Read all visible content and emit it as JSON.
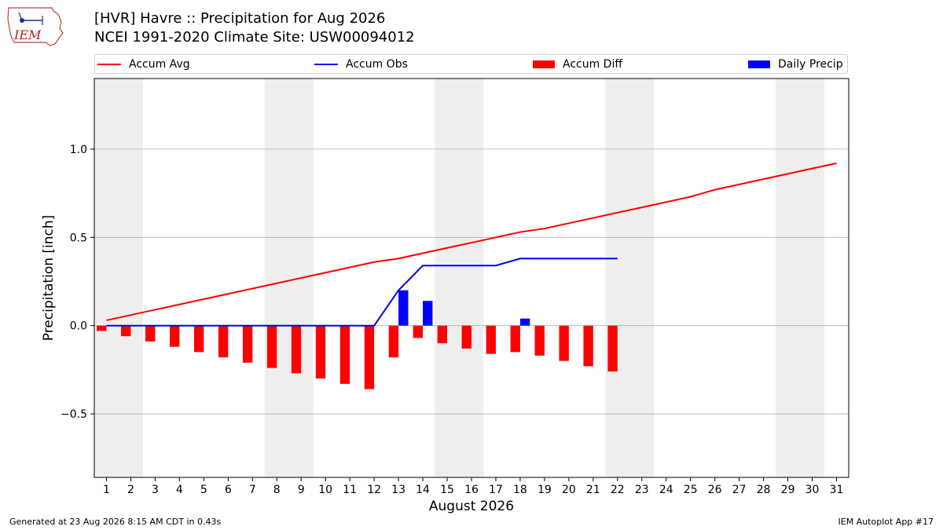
{
  "header": {
    "title_line1": "[HVR] Havre :: Precipitation for Aug 2026",
    "title_line2": "NCEI 1991-2020 Climate Site: USW00094012"
  },
  "logo": {
    "text": "IEM"
  },
  "legend": {
    "accum_avg": "Accum Avg",
    "accum_obs": "Accum Obs",
    "accum_diff": "Accum Diff",
    "daily_precip": "Daily Precip"
  },
  "footer": {
    "left": "Generated at 23 Aug 2026 8:15 AM CDT in 0.43s",
    "right": "IEM Autoplot App #17"
  },
  "colors": {
    "accum_avg": "#ff0000",
    "accum_obs": "#0000ff",
    "accum_diff": "#ff0000",
    "daily_precip": "#0000ff",
    "weekend_shade": "#eeeeee",
    "grid": "#b0b0b0"
  },
  "chart_data": {
    "type": "bar",
    "xlabel": "August 2026",
    "ylabel": "Precipitation [inch]",
    "xlim": [
      0.5,
      31.5
    ],
    "ylim": [
      -0.86,
      1.4
    ],
    "yticks": [
      -0.5,
      0.0,
      0.5,
      1.0
    ],
    "ytick_labels": [
      "−0.5",
      "0.0",
      "0.5",
      "1.0"
    ],
    "days": [
      1,
      2,
      3,
      4,
      5,
      6,
      7,
      8,
      9,
      10,
      11,
      12,
      13,
      14,
      15,
      16,
      17,
      18,
      19,
      20,
      21,
      22,
      23,
      24,
      25,
      26,
      27,
      28,
      29,
      30,
      31
    ],
    "weekend_days": [
      1,
      2,
      8,
      9,
      15,
      16,
      22,
      23,
      29,
      30
    ],
    "grid": "horizontal",
    "series": [
      {
        "name": "Accum Avg",
        "type": "line",
        "x": [
          1,
          2,
          3,
          4,
          5,
          6,
          7,
          8,
          9,
          10,
          11,
          12,
          13,
          14,
          15,
          16,
          17,
          18,
          19,
          20,
          21,
          22,
          23,
          24,
          25,
          26,
          27,
          28,
          29,
          30,
          31
        ],
        "values": [
          0.03,
          0.06,
          0.09,
          0.12,
          0.15,
          0.18,
          0.21,
          0.24,
          0.27,
          0.3,
          0.33,
          0.36,
          0.38,
          0.41,
          0.44,
          0.47,
          0.5,
          0.53,
          0.55,
          0.58,
          0.61,
          0.64,
          0.67,
          0.7,
          0.73,
          0.77,
          0.8,
          0.83,
          0.86,
          0.89,
          0.92
        ]
      },
      {
        "name": "Accum Obs",
        "type": "line",
        "x": [
          1,
          2,
          3,
          4,
          5,
          6,
          7,
          8,
          9,
          10,
          11,
          12,
          13,
          14,
          15,
          16,
          17,
          18,
          19,
          20,
          21,
          22
        ],
        "values": [
          0,
          0,
          0,
          0,
          0,
          0,
          0,
          0,
          0,
          0,
          0,
          0,
          0.2,
          0.34,
          0.34,
          0.34,
          0.34,
          0.38,
          0.38,
          0.38,
          0.38,
          0.38
        ]
      },
      {
        "name": "Accum Diff",
        "type": "bar",
        "x": [
          1,
          2,
          3,
          4,
          5,
          6,
          7,
          8,
          9,
          10,
          11,
          12,
          13,
          14,
          15,
          16,
          17,
          18,
          19,
          20,
          21,
          22
        ],
        "values": [
          -0.03,
          -0.06,
          -0.09,
          -0.12,
          -0.15,
          -0.18,
          -0.21,
          -0.24,
          -0.27,
          -0.3,
          -0.33,
          -0.36,
          -0.18,
          -0.07,
          -0.1,
          -0.13,
          -0.16,
          -0.15,
          -0.17,
          -0.2,
          -0.23,
          -0.26
        ]
      },
      {
        "name": "Daily Precip",
        "type": "bar",
        "x": [
          13,
          14,
          18
        ],
        "values": [
          0.2,
          0.14,
          0.04
        ]
      }
    ]
  }
}
